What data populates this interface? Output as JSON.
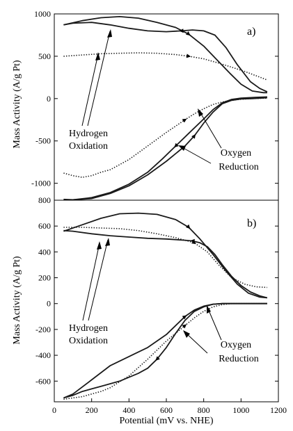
{
  "chart_data": [
    {
      "type": "line",
      "panel_label": "a)",
      "ylabel": "Mass Activity (A/g Pt)",
      "xlim": [
        0,
        1200
      ],
      "ylim": [
        -1200,
        1000
      ],
      "yticks": [
        "-1000",
        "-500",
        "0",
        "500",
        "1000"
      ],
      "ytick_values": [
        -1000,
        -500,
        0,
        500,
        1000
      ],
      "annotations": [
        {
          "lines": [
            "Hydrogen",
            "Oxidation"
          ]
        },
        {
          "lines": [
            "Oxygen",
            "Reduction"
          ]
        }
      ],
      "series": [
        {
          "style": "solid",
          "x": [
            50,
            150,
            250,
            350,
            450,
            550,
            650,
            720,
            800,
            870,
            940,
            1000,
            1060,
            1120,
            1140
          ],
          "y": [
            870,
            920,
            955,
            968,
            950,
            900,
            840,
            760,
            620,
            460,
            300,
            170,
            90,
            70,
            70
          ]
        },
        {
          "style": "solid",
          "x": [
            1140,
            1100,
            1050,
            980,
            920,
            860,
            800,
            740,
            680,
            600,
            500,
            400,
            300,
            200,
            100,
            50
          ],
          "y": [
            80,
            120,
            200,
            400,
            600,
            750,
            800,
            810,
            800,
            790,
            800,
            830,
            870,
            900,
            890,
            870
          ]
        },
        {
          "style": "dotted",
          "x": [
            50,
            150,
            250,
            350,
            450,
            550,
            650,
            720,
            800,
            880,
            950,
            1020,
            1080,
            1140
          ],
          "y": [
            500,
            515,
            530,
            535,
            540,
            535,
            520,
            500,
            470,
            420,
            370,
            320,
            270,
            220
          ]
        },
        {
          "style": "solid",
          "x": [
            50,
            100,
            200,
            300,
            400,
            500,
            600,
            700,
            750,
            800,
            850,
            900,
            950,
            1000,
            1060,
            1140
          ],
          "y": [
            -1190,
            -1195,
            -1180,
            -1120,
            -1030,
            -900,
            -740,
            -560,
            -440,
            -290,
            -160,
            -60,
            -20,
            -5,
            0,
            10
          ]
        },
        {
          "style": "solid",
          "x": [
            1140,
            1080,
            1000,
            950,
            900,
            850,
            800,
            720,
            650,
            580,
            500,
            400,
            300,
            200,
            100,
            50
          ],
          "y": [
            20,
            15,
            5,
            -10,
            -50,
            -130,
            -240,
            -410,
            -560,
            -710,
            -870,
            -1010,
            -1110,
            -1170,
            -1195,
            -1200
          ]
        },
        {
          "style": "dotted",
          "x": [
            50,
            100,
            150,
            200,
            250,
            300,
            400,
            500,
            600,
            700,
            750,
            800,
            850,
            900,
            950,
            1000,
            1060,
            1140
          ],
          "y": [
            -880,
            -910,
            -930,
            -910,
            -870,
            -840,
            -720,
            -560,
            -400,
            -250,
            -180,
            -120,
            -70,
            -40,
            -20,
            -8,
            0,
            5
          ]
        }
      ]
    },
    {
      "type": "line",
      "panel_label": "b)",
      "ylabel": "Mass Activity (A/g Pt)",
      "xlabel": "Potential (mV vs. NHE)",
      "xlim": [
        0,
        1200
      ],
      "ylim": [
        -760,
        800
      ],
      "xticks": [
        "0",
        "200",
        "400",
        "600",
        "800",
        "1000",
        "1200"
      ],
      "xtick_values": [
        0,
        200,
        400,
        600,
        800,
        1000,
        1200
      ],
      "yticks": [
        "-600",
        "-400",
        "-200",
        "0",
        "200",
        "400",
        "600",
        "800"
      ],
      "ytick_values": [
        -600,
        -400,
        -200,
        0,
        200,
        400,
        600,
        800
      ],
      "annotations": [
        {
          "lines": [
            "Hydrogen",
            "Oxidation"
          ]
        },
        {
          "lines": [
            "Oxygen",
            "Reduction"
          ]
        }
      ],
      "series": [
        {
          "style": "solid",
          "x": [
            50,
            150,
            250,
            350,
            450,
            550,
            650,
            720,
            780,
            850,
            920,
            980,
            1040,
            1100,
            1140
          ],
          "y": [
            560,
            610,
            660,
            695,
            700,
            690,
            650,
            590,
            500,
            380,
            250,
            150,
            80,
            50,
            45
          ]
        },
        {
          "style": "solid",
          "x": [
            1140,
            1100,
            1050,
            1000,
            950,
            900,
            860,
            820,
            780,
            740,
            700,
            650,
            600,
            500,
            400,
            300,
            200,
            100,
            50
          ],
          "y": [
            45,
            60,
            90,
            140,
            210,
            300,
            380,
            440,
            470,
            485,
            490,
            495,
            500,
            505,
            515,
            525,
            540,
            560,
            565
          ]
        },
        {
          "style": "dotted",
          "x": [
            50,
            150,
            250,
            350,
            450,
            550,
            650,
            750,
            820,
            880,
            950,
            1020,
            1080,
            1140
          ],
          "y": [
            590,
            590,
            585,
            580,
            565,
            540,
            510,
            470,
            400,
            300,
            200,
            150,
            130,
            125
          ]
        },
        {
          "style": "solid",
          "x": [
            50,
            100,
            200,
            300,
            400,
            500,
            600,
            650,
            700,
            750,
            800,
            850,
            900,
            950,
            1000,
            1060,
            1140
          ],
          "y": [
            -730,
            -700,
            -590,
            -480,
            -410,
            -340,
            -240,
            -170,
            -100,
            -50,
            -20,
            -5,
            0,
            0,
            0,
            0,
            0
          ]
        },
        {
          "style": "solid",
          "x": [
            1140,
            1080,
            1000,
            950,
            900,
            850,
            800,
            750,
            700,
            650,
            600,
            550,
            500,
            450,
            400,
            350,
            300,
            250,
            200,
            150,
            100,
            50
          ],
          "y": [
            0,
            0,
            0,
            0,
            0,
            -5,
            -25,
            -60,
            -130,
            -230,
            -340,
            -430,
            -500,
            -540,
            -570,
            -600,
            -620,
            -640,
            -660,
            -680,
            -710,
            -730
          ]
        },
        {
          "style": "dotted",
          "x": [
            50,
            100,
            150,
            200,
            250,
            300,
            400,
            500,
            600,
            700,
            750,
            800,
            850,
            900,
            950,
            1000,
            1060,
            1140
          ],
          "y": [
            -740,
            -730,
            -720,
            -700,
            -680,
            -650,
            -560,
            -430,
            -290,
            -170,
            -110,
            -60,
            -25,
            -8,
            0,
            0,
            0,
            0
          ]
        }
      ]
    }
  ]
}
